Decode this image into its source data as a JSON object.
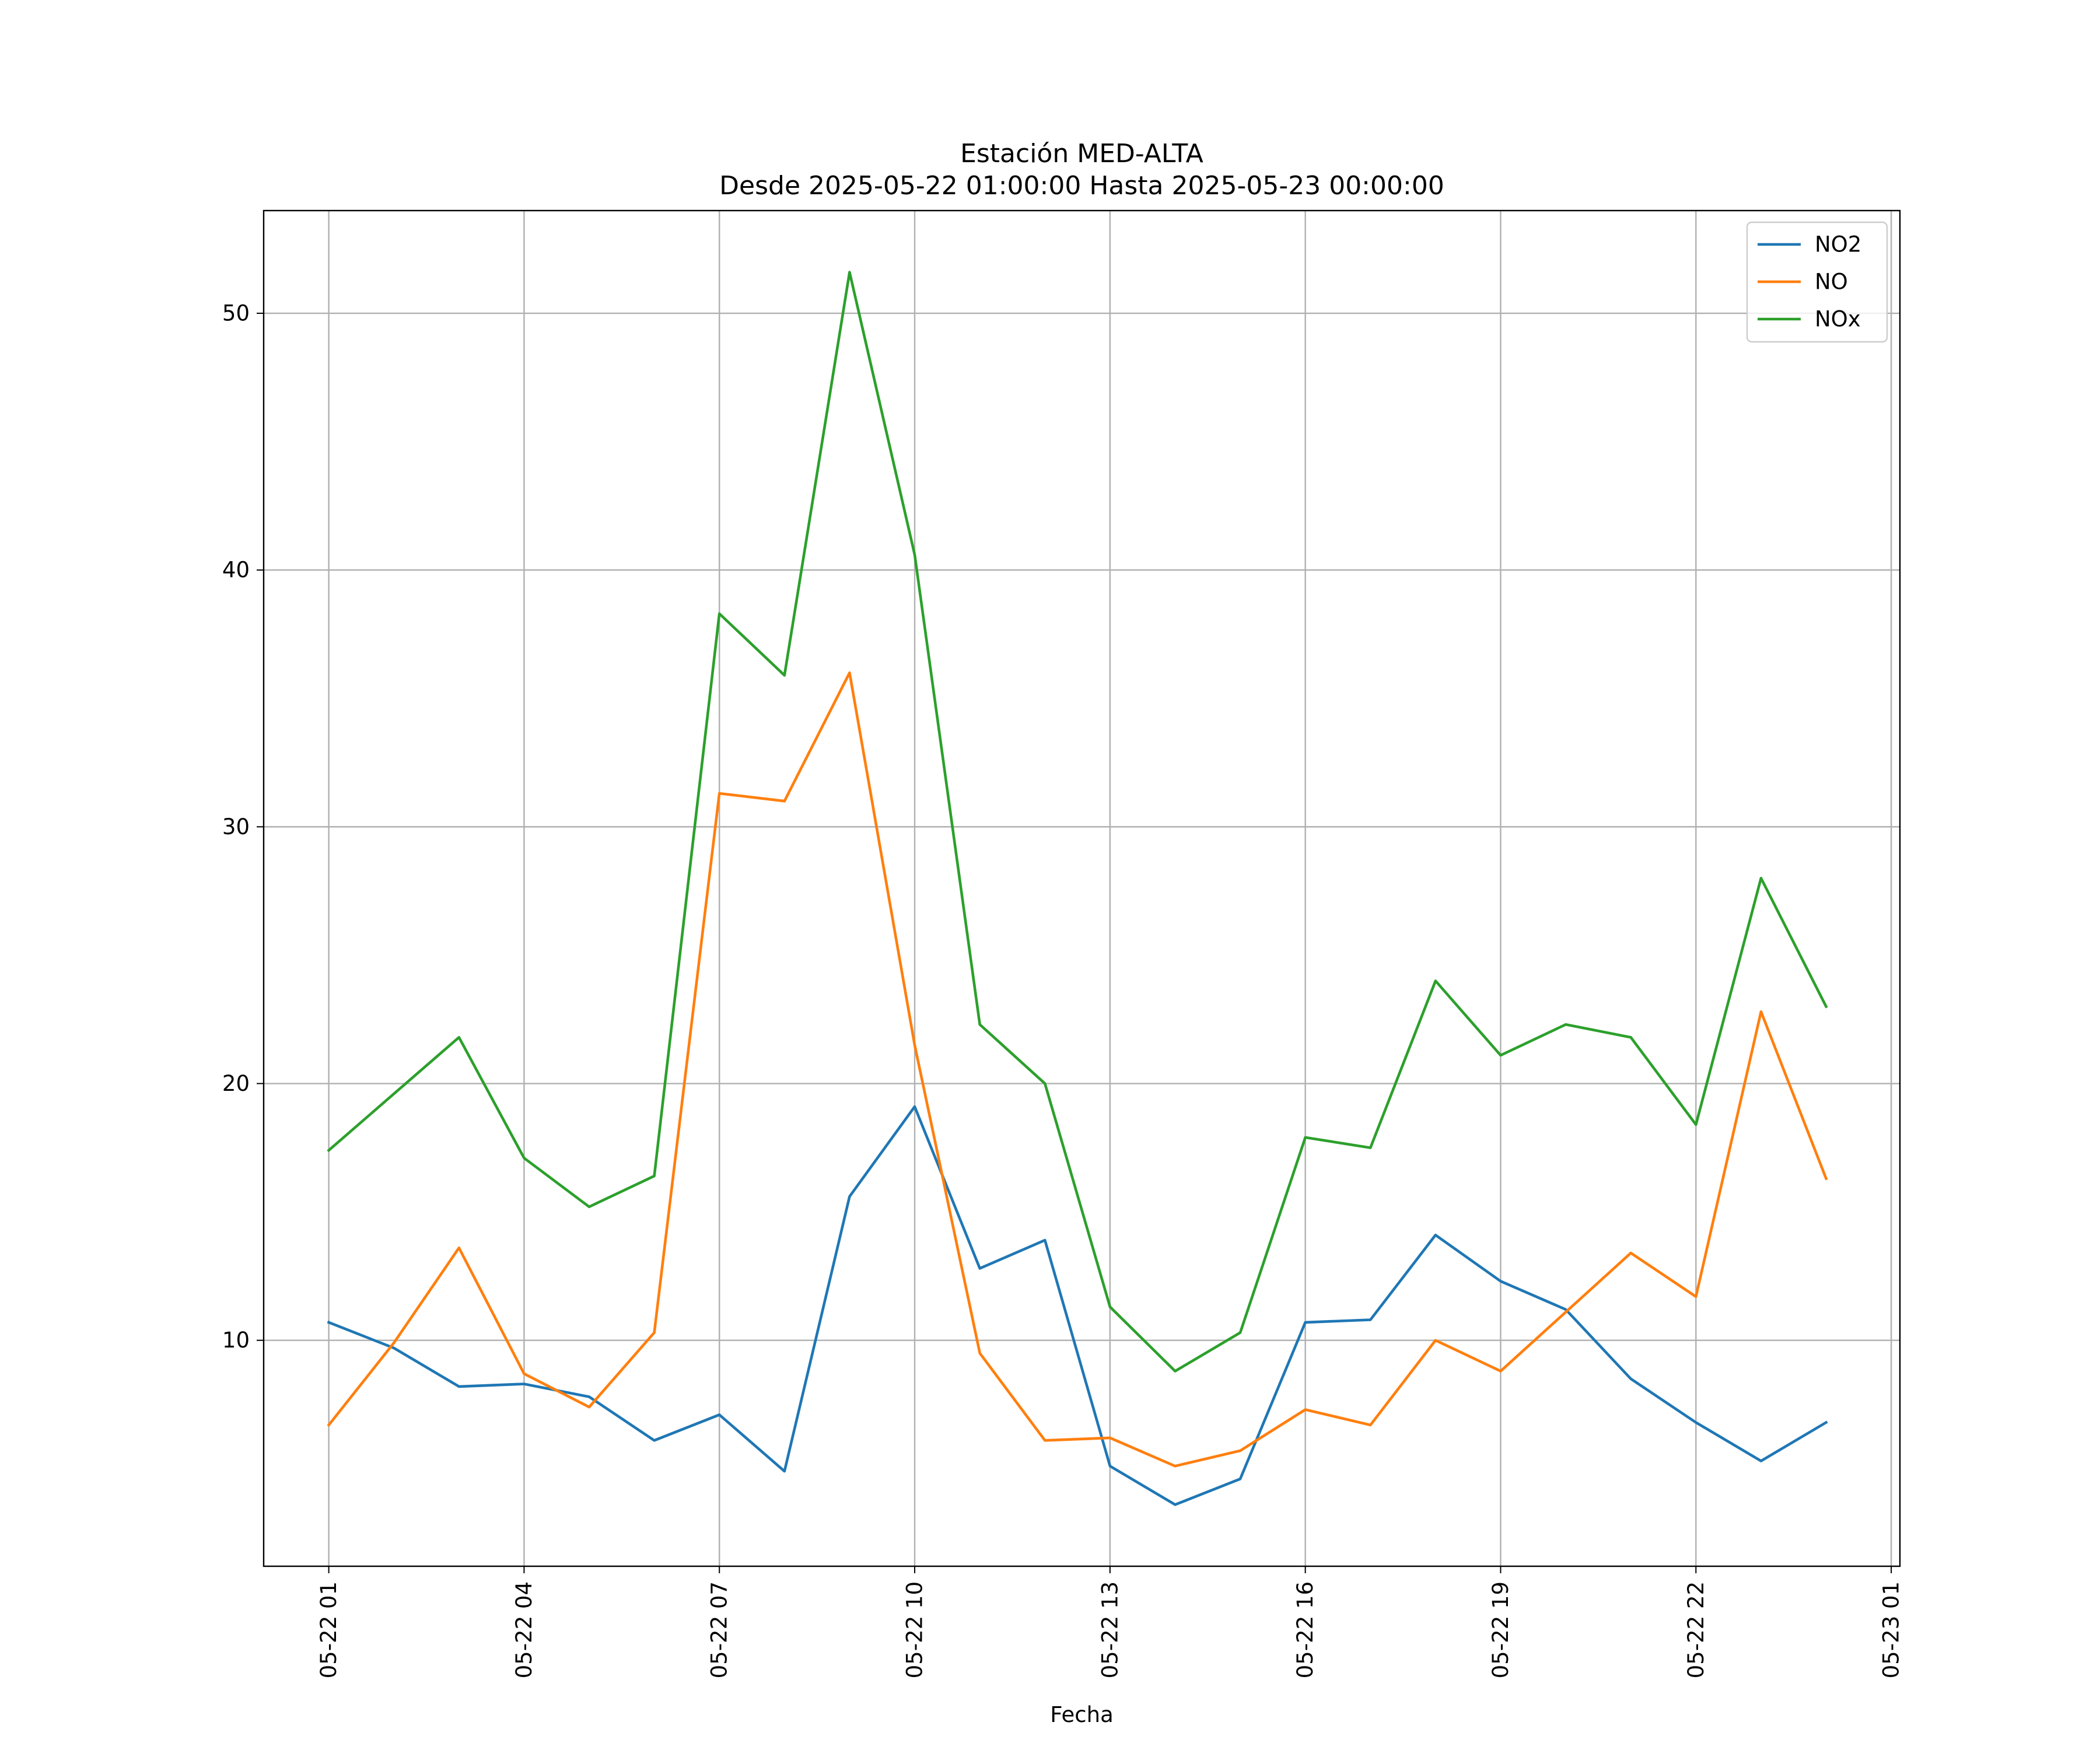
{
  "chart_data": {
    "type": "line",
    "title": "Estación MED-ALTA",
    "subtitle": "Desde 2025-05-22 01:00:00 Hasta 2025-05-23 00:00:00",
    "xlabel": "Fecha",
    "ylabel": "",
    "x": [
      "2025-05-22 01:00",
      "2025-05-22 02:00",
      "2025-05-22 03:00",
      "2025-05-22 04:00",
      "2025-05-22 05:00",
      "2025-05-22 06:00",
      "2025-05-22 07:00",
      "2025-05-22 08:00",
      "2025-05-22 09:00",
      "2025-05-22 10:00",
      "2025-05-22 11:00",
      "2025-05-22 12:00",
      "2025-05-22 13:00",
      "2025-05-22 14:00",
      "2025-05-22 15:00",
      "2025-05-22 16:00",
      "2025-05-22 17:00",
      "2025-05-22 18:00",
      "2025-05-22 19:00",
      "2025-05-22 20:00",
      "2025-05-22 21:00",
      "2025-05-22 22:00",
      "2025-05-22 23:00",
      "2025-05-23 00:00"
    ],
    "xlim": [
      "2025-05-22 00:00",
      "2025-05-23 01:08"
    ],
    "ylim": [
      1.2,
      54
    ],
    "x_ticks": [
      "05-22 01",
      "05-22 04",
      "05-22 07",
      "05-22 10",
      "05-22 13",
      "05-22 16",
      "05-22 19",
      "05-22 22",
      "05-23 01"
    ],
    "x_tick_values": [
      "2025-05-22 01:00",
      "2025-05-22 04:00",
      "2025-05-22 07:00",
      "2025-05-22 10:00",
      "2025-05-22 13:00",
      "2025-05-22 16:00",
      "2025-05-22 19:00",
      "2025-05-22 22:00",
      "2025-05-23 01:00"
    ],
    "y_ticks": [
      10,
      20,
      30,
      40,
      50
    ],
    "grid": true,
    "legend_position": "top-right",
    "series": [
      {
        "name": "NO2",
        "color": "#1f77b4",
        "values": [
          10.7,
          9.7,
          8.2,
          8.3,
          7.8,
          6.1,
          7.1,
          4.9,
          15.6,
          19.1,
          12.8,
          13.9,
          5.1,
          3.6,
          4.6,
          10.7,
          10.8,
          14.1,
          12.3,
          11.2,
          8.5,
          6.8,
          5.3,
          6.8
        ]
      },
      {
        "name": "NO",
        "color": "#ff7f0e",
        "values": [
          6.7,
          9.9,
          13.6,
          8.7,
          7.4,
          10.3,
          31.3,
          31.0,
          36.0,
          21.5,
          9.5,
          6.1,
          6.2,
          5.1,
          5.7,
          7.3,
          6.7,
          10.0,
          8.8,
          11.1,
          13.4,
          11.7,
          22.8,
          16.3
        ]
      },
      {
        "name": "NOx",
        "color": "#2ca02c",
        "values": [
          17.4,
          19.6,
          21.8,
          17.1,
          15.2,
          16.4,
          38.3,
          35.9,
          51.6,
          40.6,
          22.3,
          20.0,
          11.3,
          8.8,
          10.3,
          17.9,
          17.5,
          24.0,
          21.1,
          22.3,
          21.8,
          18.4,
          28.0,
          23.0
        ]
      }
    ]
  }
}
